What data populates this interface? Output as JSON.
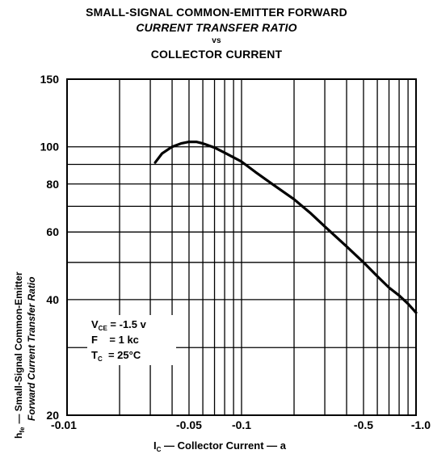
{
  "title": {
    "line1": "SMALL-SIGNAL COMMON-EMITTER FORWARD",
    "line2": "CURRENT TRANSFER RATIO",
    "line3": "vs",
    "line4": "COLLECTOR CURRENT"
  },
  "ylabel": {
    "symbol_main": "h",
    "symbol_sub": "fe",
    "line1": "— Small-Signal Common-Emitter",
    "line2": "Forward Current Transfer Ratio"
  },
  "xlabel": {
    "symbol_main": "I",
    "symbol_sub": "C",
    "text": " — Collector Current — a"
  },
  "conditions": {
    "vce_main": "V",
    "vce_sub": "CE",
    "vce_value": " = -1.5 v",
    "f_main": "F",
    "f_value": "    = 1 kc",
    "tc_main": "T",
    "tc_sub": "C",
    "tc_value": "  = 25°C"
  },
  "chart_data": {
    "type": "line",
    "x_scale": "log",
    "y_scale": "log",
    "xlim": [
      -0.01,
      -1.0
    ],
    "ylim": [
      20,
      150
    ],
    "x_ticks": [
      {
        "value": -0.01,
        "label": "-0.01"
      },
      {
        "value": -0.05,
        "label": "-0.05"
      },
      {
        "value": -0.1,
        "label": "-0.1"
      },
      {
        "value": -0.5,
        "label": "-0.5"
      },
      {
        "value": -1.0,
        "label": "-1.0"
      }
    ],
    "y_ticks": [
      {
        "value": 20,
        "label": "20"
      },
      {
        "value": 40,
        "label": "40"
      },
      {
        "value": 60,
        "label": "60"
      },
      {
        "value": 80,
        "label": "80"
      },
      {
        "value": 100,
        "label": "100"
      },
      {
        "value": 150,
        "label": "150"
      }
    ],
    "x_gridlines": [
      -0.02,
      -0.03,
      -0.04,
      -0.05,
      -0.06,
      -0.07,
      -0.08,
      -0.09,
      -0.1,
      -0.2,
      -0.3,
      -0.4,
      -0.5,
      -0.6,
      -0.7,
      -0.8,
      -0.9
    ],
    "y_gridlines": [
      30,
      40,
      50,
      60,
      70,
      80,
      90,
      100
    ],
    "grid": true,
    "series": [
      {
        "x": [
          -0.032,
          -0.035,
          -0.04,
          -0.045,
          -0.05,
          -0.055,
          -0.06,
          -0.07,
          -0.08,
          -0.1,
          -0.12,
          -0.15,
          -0.2,
          -0.25,
          -0.3,
          -0.4,
          -0.5,
          -0.6,
          -0.7,
          -0.8,
          -0.9,
          -1.0
        ],
        "y": [
          91,
          96,
          100,
          102,
          103,
          103,
          102,
          99.5,
          96.5,
          91.5,
          86,
          80,
          73,
          67,
          62,
          55,
          50,
          46,
          43,
          41,
          39,
          37
        ]
      }
    ]
  }
}
